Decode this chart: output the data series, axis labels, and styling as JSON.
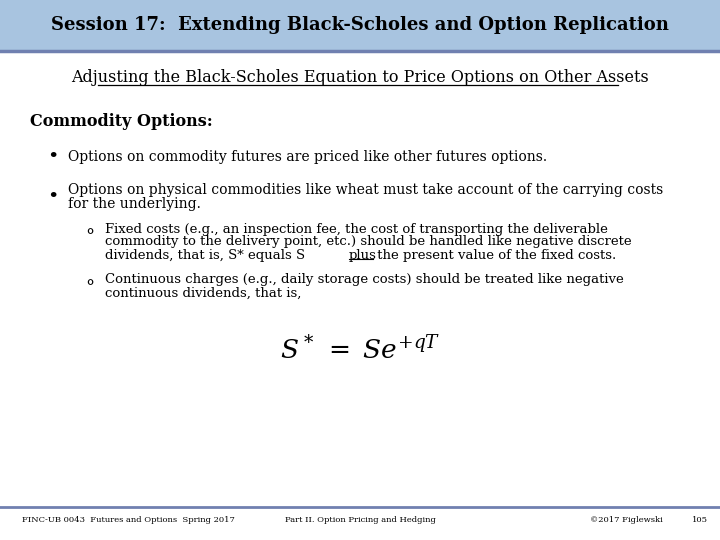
{
  "title": "Session 17:  Extending Black-Scholes and Option Replication",
  "subtitle": "Adjusting the Black-Scholes Equation to Price Options on Other Assets",
  "header_bg": "#a8c4e0",
  "header_text_color": "#000000",
  "slide_bg": "#ffffff",
  "section_heading": "Commodity Options:",
  "bullet1": "Options on commodity futures are priced like other futures options.",
  "bullet2_line1": "Options on physical commodities like wheat must take account of the carrying costs",
  "bullet2_line2": "for the underlying.",
  "sub_bullet1_line1": "Fixed costs (e.g., an inspection fee, the cost of transporting the deliverable",
  "sub_bullet1_line2": "commodity to the delivery point, etc.) should be handled like negative discrete",
  "sub_bullet1_line3a": "dividends, that is, S* equals S ",
  "sub_bullet1_underline": "plus",
  "sub_bullet1_line3b": " the present value of the fixed costs.",
  "sub_bullet2_line1": "Continuous charges (e.g., daily storage costs) should be treated like negative",
  "sub_bullet2_line2": "continuous dividends, that is,",
  "footer_left": "FINC-UB 0043  Futures and Options  Spring 2017",
  "footer_center": "Part II. Option Pricing and Hedging",
  "footer_right": "©2017 Figlewski",
  "footer_page": "105",
  "divider_color": "#7080b0",
  "footer_divider_color": "#7080b0"
}
